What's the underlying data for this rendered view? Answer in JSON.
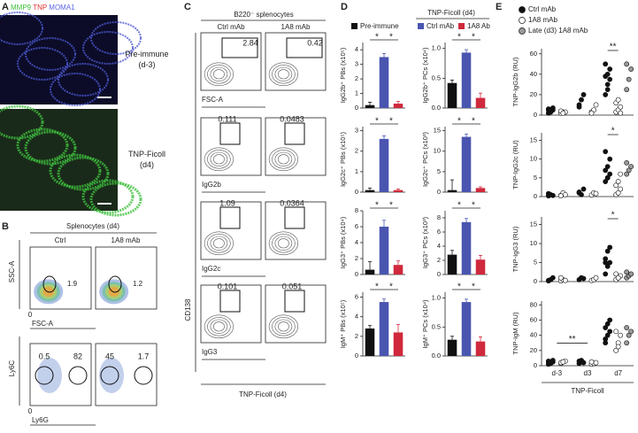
{
  "panel_a": {
    "label": "A",
    "stains": [
      {
        "name": "MMP9",
        "color": "#3fbf3f"
      },
      {
        "name": "TNP",
        "color": "#e03030"
      },
      {
        "name": "MOMA1",
        "color": "#5a66e8"
      }
    ],
    "conditions": [
      [
        "Pre-immune",
        "(d-3)"
      ],
      [
        "TNP-Ficoll",
        "(d4)"
      ]
    ]
  },
  "panel_b": {
    "label": "B",
    "title": "Splenocytes (d4)",
    "columns": [
      "Ctrl",
      "1A8 mAb"
    ],
    "rows": [
      {
        "y_label": "SSC-A",
        "x_label": "FSC-A",
        "origin": 0,
        "gate_values": [
          [
            1.9
          ],
          [
            1.2
          ]
        ]
      },
      {
        "y_label": "Ly6C",
        "x_label": "Ly6G",
        "origin": 0,
        "gate_values": [
          [
            0.5,
            82
          ],
          [
            45,
            1.7
          ]
        ]
      }
    ]
  },
  "panel_c": {
    "label": "C",
    "title": "B220⁻ splenocytes",
    "columns": [
      "Ctrl mAb",
      "1A8 mAb"
    ],
    "y_label": "CD138",
    "x_labels": [
      "FSC-A",
      "IgG2b",
      "IgG2c",
      "IgG3"
    ],
    "gate_values": [
      [
        2.84,
        0.42
      ],
      [
        0.111,
        0.0483
      ],
      [
        1.09,
        0.0364
      ],
      [
        0.101,
        0.051
      ]
    ],
    "footer": "TNP-Ficoll (d4)"
  },
  "panel_d": {
    "label": "D",
    "legend": {
      "header": "TNP-Ficoll (d4)",
      "series": [
        {
          "name": "Pre-immune",
          "color": "#111111"
        },
        {
          "name": "Ctrl mAb",
          "color": "#4a55b0"
        },
        {
          "name": "1A8 Ab",
          "color": "#d0283c"
        }
      ]
    },
    "charts": [
      {
        "type": "bar",
        "y_label": "IgG2b⁺ PBs (x10⁵)",
        "ylim": [
          0,
          4.5
        ],
        "yticks": [
          0,
          1,
          2,
          3,
          4
        ],
        "values": [
          0.2,
          3.5,
          0.3
        ],
        "errors": [
          0.2,
          0.25,
          0.15
        ],
        "significance": [
          "*",
          "*"
        ]
      },
      {
        "type": "bar",
        "y_label": "IgG2b⁺ PCs (x10⁴)",
        "ylim": [
          0,
          1.1
        ],
        "yticks": [
          {
            "value": 0,
            "label": "0.0"
          },
          {
            "value": 0.5,
            "label": "0.5"
          },
          {
            "value": 1,
            "label": "1.0"
          }
        ],
        "values": [
          0.42,
          0.93,
          0.17
        ],
        "errors": [
          0.05,
          0.05,
          0.08
        ],
        "significance": [
          "*",
          "*"
        ]
      },
      {
        "type": "bar",
        "y_label": "IgG2c⁺ PBs (x10⁵)",
        "ylim": [
          0,
          3.2
        ],
        "yticks": [
          0,
          1,
          2,
          3
        ],
        "values": [
          0.1,
          2.6,
          0.1
        ],
        "errors": [
          0.1,
          0.15,
          0.05
        ],
        "significance": [
          "*",
          "*"
        ]
      },
      {
        "type": "bar",
        "y_label": "IgG2c⁺ PCs (x10³)",
        "ylim": [
          0,
          16
        ],
        "yticks": [
          0,
          5,
          10,
          15
        ],
        "values": [
          0.5,
          13.5,
          1
        ],
        "errors": [
          2.5,
          0.7,
          0.3
        ],
        "significance": [
          "*",
          "*"
        ]
      },
      {
        "type": "bar",
        "y_label": "IgG3⁺ PBs (x10⁴)",
        "ylim": [
          0,
          8
        ],
        "yticks": [
          0,
          2,
          4,
          6,
          8
        ],
        "values": [
          0.6,
          6,
          1.2
        ],
        "errors": [
          1,
          0.8,
          0.5
        ],
        "significance": [
          "*",
          "*"
        ]
      },
      {
        "type": "bar",
        "y_label": "IgG3⁺ PCs (x10³)",
        "ylim": [
          0,
          9
        ],
        "yticks": [
          0,
          2,
          4,
          6,
          8
        ],
        "values": [
          2.8,
          7.4,
          2.1
        ],
        "errors": [
          0.6,
          0.5,
          0.6
        ],
        "significance": [
          "*",
          "*"
        ]
      },
      {
        "type": "bar",
        "y_label": "IgM⁺ PBs (x10⁵)",
        "ylim": [
          0,
          6.5
        ],
        "yticks": [
          0,
          2,
          4,
          6
        ],
        "values": [
          2.8,
          5.5,
          2.4
        ],
        "errors": [
          0.3,
          0.3,
          0.8
        ],
        "significance": [
          "*",
          "*"
        ]
      },
      {
        "type": "bar",
        "y_label": "IgM⁺ PCs (x10⁴)",
        "ylim": [
          0,
          1.1
        ],
        "yticks": [
          {
            "value": 0,
            "label": "0.0"
          },
          {
            "value": 0.5,
            "label": "0.5"
          },
          {
            "value": 1,
            "label": "1.0"
          }
        ],
        "values": [
          0.28,
          0.93,
          0.25
        ],
        "errors": [
          0.06,
          0.05,
          0.08
        ],
        "significance": [
          "*",
          "*"
        ]
      }
    ]
  },
  "panel_e": {
    "label": "E",
    "legend": [
      {
        "name": "Ctrl mAb",
        "color": "#111111"
      },
      {
        "name": "1A8 mAb",
        "color": "#ffffff"
      },
      {
        "name": "Late (d3) 1A8 mAb",
        "color": "#999999"
      }
    ],
    "categories": [
      "d-3",
      "d3",
      "d7"
    ],
    "x_label": "TNP-Ficoll",
    "charts": [
      {
        "type": "scatter",
        "y_label": "TNP-IgG2b (RU)",
        "ylim": [
          0,
          65
        ],
        "yticks": [
          0,
          20,
          40,
          60
        ],
        "significance": "**",
        "series": [
          [
            [
              2,
              4,
              5,
              6,
              3,
              7,
              5,
              4
            ],
            [
              10,
              15,
              20,
              8
            ],
            [
              20,
              25,
              35,
              38,
              40,
              45,
              50,
              30
            ]
          ],
          [
            [
              2,
              3,
              3,
              4,
              2
            ],
            [
              3,
              5,
              10,
              2
            ],
            [
              3,
              5,
              8,
              12,
              15,
              2
            ]
          ],
          [
            [],
            [],
            [
              25,
              35,
              45,
              50
            ]
          ]
        ]
      },
      {
        "type": "scatter",
        "y_label": "TNP-IgG2c (RU)",
        "ylim": [
          0,
          17
        ],
        "yticks": [
          0,
          5,
          10,
          15
        ],
        "significance": "*",
        "series": [
          [
            [
              0.2,
              0.5,
              0.3,
              0.8
            ],
            [
              1,
              0.5,
              2,
              1.2
            ],
            [
              4,
              5,
              6,
              7,
              8,
              10,
              12,
              5
            ]
          ],
          [
            [
              0.3,
              1,
              0.5,
              0.2
            ],
            [
              0.4,
              1,
              0.8
            ],
            [
              0.5,
              1,
              2,
              3,
              4,
              6
            ]
          ],
          [
            [],
            [],
            [
              6,
              7,
              8,
              9
            ]
          ]
        ]
      },
      {
        "type": "scatter",
        "y_label": "TNP-IgG3 (RU)",
        "ylim": [
          0,
          17
        ],
        "yticks": [
          0,
          5,
          10,
          15
        ],
        "significance": "*",
        "series": [
          [
            [
              0.2,
              0.5,
              1,
              0.3
            ],
            [
              0.5,
              1,
              0.8
            ],
            [
              2,
              4,
              5,
              6,
              8,
              9,
              5
            ]
          ],
          [
            [
              0.2,
              0.5,
              0.3,
              1
            ],
            [
              0.3,
              0.5,
              1
            ],
            [
              0.5,
              1,
              1.5,
              2,
              1
            ]
          ],
          [
            [],
            [],
            [
              1,
              1.5,
              2,
              2.5
            ]
          ]
        ]
      },
      {
        "type": "scatter",
        "y_label": "TNP-IgM (RU)",
        "ylim": [
          0,
          85
        ],
        "yticks": [
          0,
          20,
          40,
          60,
          80
        ],
        "significance": "**",
        "series": [
          [
            [
              2,
              4,
              5,
              6,
              3,
              7,
              5,
              4
            ],
            [
              3,
              5,
              4,
              6,
              7
            ],
            [
              30,
              40,
              45,
              50,
              55,
              60,
              35
            ]
          ],
          [
            [
              3,
              5,
              6,
              4,
              5
            ],
            [
              2,
              3,
              4,
              5
            ],
            [
              20,
              30,
              40,
              45,
              25
            ]
          ],
          [
            [],
            [],
            [
              30,
              40,
              45,
              50
            ]
          ]
        ]
      }
    ]
  }
}
